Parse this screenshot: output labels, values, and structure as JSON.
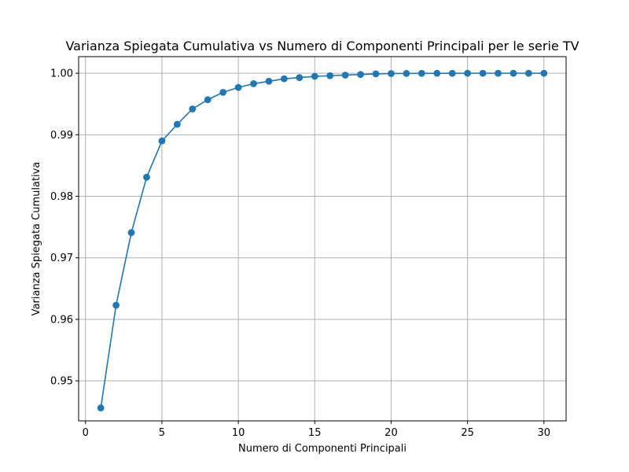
{
  "chart_data": {
    "type": "line",
    "title": "Varianza Spiegata Cumulativa vs Numero di Componenti Principali per le serie TV",
    "xlabel": "Numero di Componenti Principali",
    "ylabel": "Varianza Spiegata Cumulativa",
    "xlim": [
      -0.45,
      31.45
    ],
    "ylim": [
      0.9435,
      1.0027
    ],
    "x_ticks": [
      0,
      5,
      10,
      15,
      20,
      25,
      30
    ],
    "y_ticks": [
      0.95,
      0.96,
      0.97,
      0.98,
      0.99,
      1.0
    ],
    "x_tick_labels": [
      "0",
      "5",
      "10",
      "15",
      "20",
      "25",
      "30"
    ],
    "y_tick_labels": [
      "0.95",
      "0.96",
      "0.97",
      "0.98",
      "0.99",
      "1.00"
    ],
    "grid": true,
    "marker": "circle",
    "series": [
      {
        "color": "#1f77b4",
        "x": [
          1,
          2,
          3,
          4,
          5,
          6,
          7,
          8,
          9,
          10,
          11,
          12,
          13,
          14,
          15,
          16,
          17,
          18,
          19,
          20,
          21,
          22,
          23,
          24,
          25,
          26,
          27,
          28,
          29,
          30
        ],
        "y": [
          0.9456,
          0.9623,
          0.9741,
          0.9831,
          0.989,
          0.9917,
          0.9942,
          0.9957,
          0.9969,
          0.9977,
          0.9983,
          0.9987,
          0.9991,
          0.9993,
          0.9995,
          0.9996,
          0.9997,
          0.9998,
          0.9999,
          0.99995,
          0.99997,
          0.99998,
          0.99999,
          0.99999,
          1.0,
          1.0,
          1.0,
          1.0,
          1.0,
          1.0
        ]
      }
    ]
  }
}
